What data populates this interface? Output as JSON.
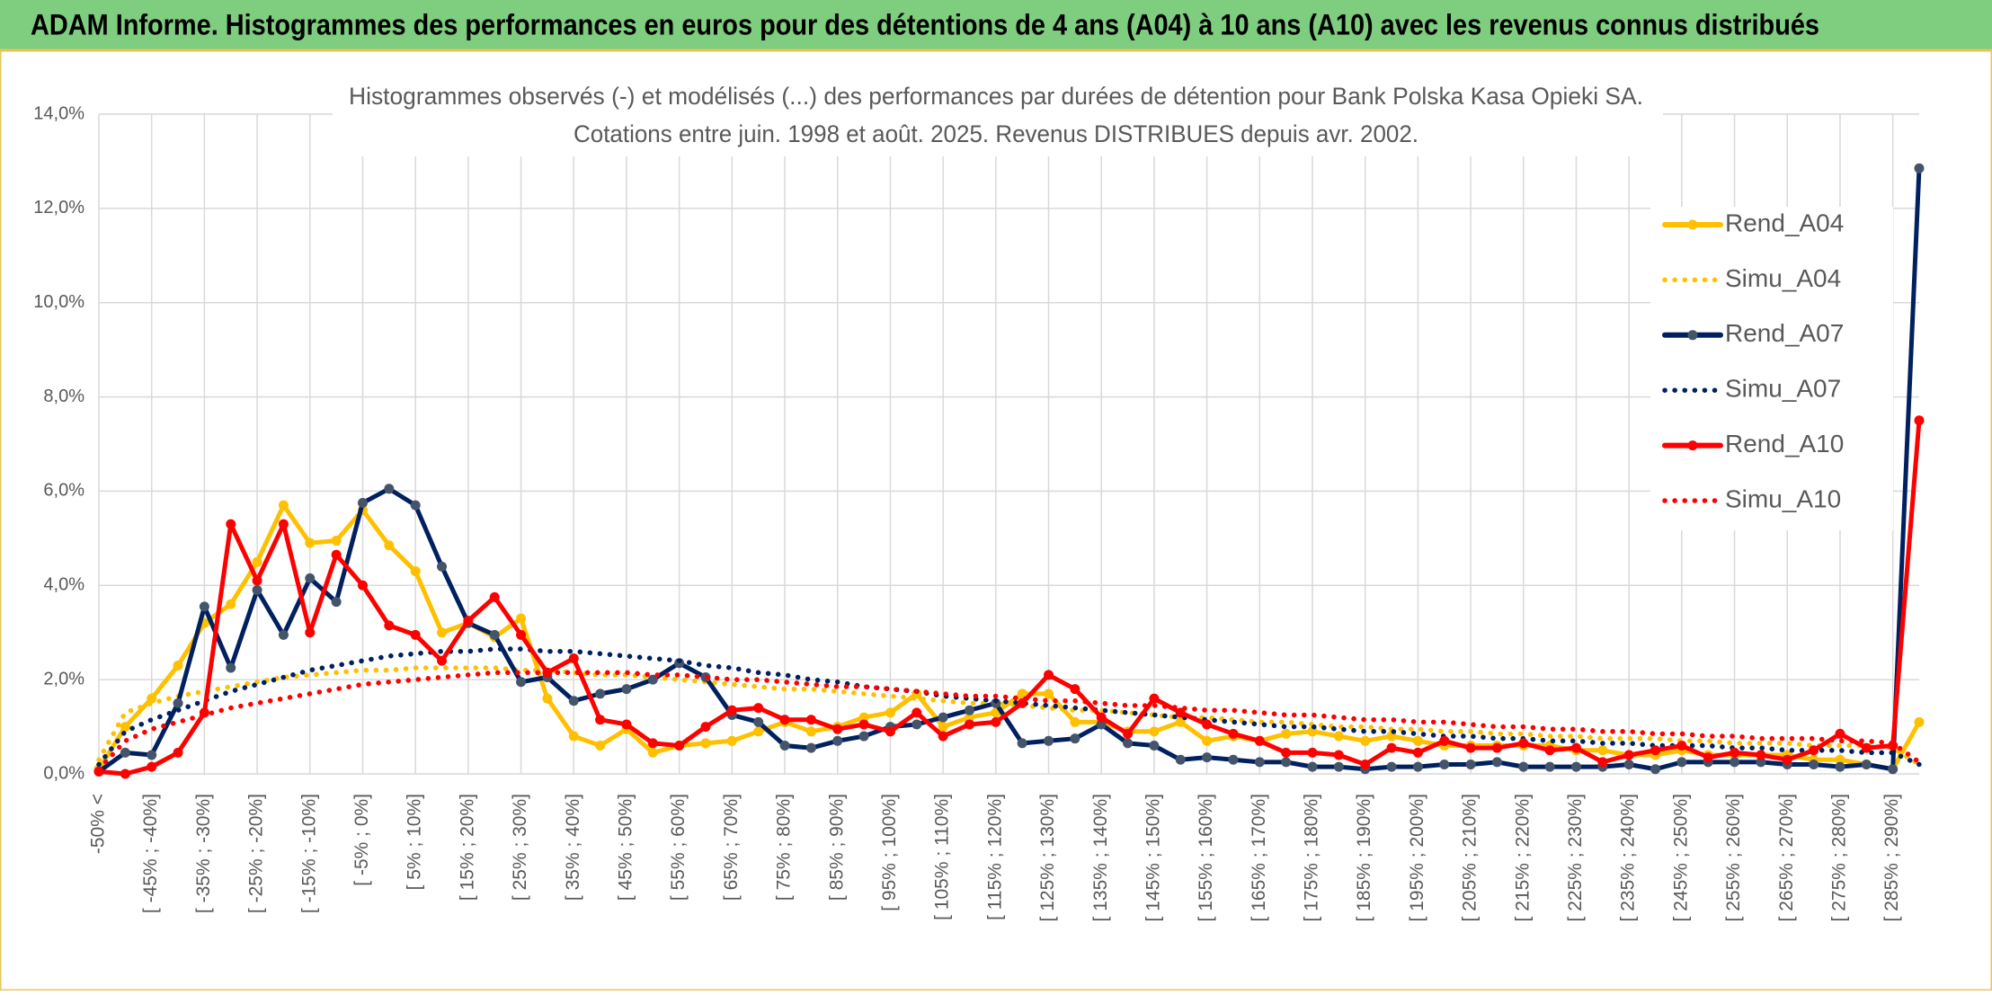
{
  "header": {
    "title": "ADAM Informe. Histogrammes des performances en euros pour des détentions de 4 ans (A04) à 10 ans (A10) avec les revenus connus distribués"
  },
  "chart_data": {
    "type": "line",
    "title": "Histogrammes observés (-) et modélisés (...) des performances par durées de détention pour Bank Polska Kasa Opieki SA.",
    "subtitle": "Cotations entre juin. 1998 et août. 2025. Revenus DISTRIBUES depuis avr. 2002.",
    "categories": [
      "-50% <",
      null,
      "[ -45% ; -40%]",
      null,
      "[ -35% ; -30%]",
      null,
      "[ -25% ; -20%]",
      null,
      "[ -15% ; -10%]",
      null,
      "[ -5% ; 0%]",
      null,
      "[ 5% ; 10%]",
      null,
      "[ 15% ; 20%]",
      null,
      "[ 25% ; 30%]",
      null,
      "[ 35% ; 40%]",
      null,
      "[ 45% ; 50%]",
      null,
      "[ 55% ; 60%]",
      null,
      "[ 65% ; 70%]",
      null,
      "[ 75% ; 80%]",
      null,
      "[ 85% ; 90%]",
      null,
      "[ 95% ; 100%]",
      null,
      "[ 105% ; 110%]",
      null,
      "[ 115% ; 120%]",
      null,
      "[ 125% ; 130%]",
      null,
      "[ 135% ; 140%]",
      null,
      "[ 145% ; 150%]",
      null,
      "[ 155% ; 160%]",
      null,
      "[ 165% ; 170%]",
      null,
      "[ 175% ; 180%]",
      null,
      "[ 185% ; 190%]",
      null,
      "[ 195% ; 200%]",
      null,
      "[ 205% ; 210%]",
      null,
      "[ 215% ; 220%]",
      null,
      "[ 225% ; 230%]",
      null,
      "[ 235% ; 240%]",
      null,
      "[ 245% ; 250%]",
      null,
      "[ 255% ; 260%]",
      null,
      "[ 265% ; 270%]",
      null,
      "[ 275% ; 280%]",
      null,
      "[ 285% ; 290%]",
      null
    ],
    "series": [
      {
        "name": "Rend_A04",
        "color": "#ffc000",
        "style": "solid",
        "markers": true,
        "values": [
          0.1,
          1.0,
          1.6,
          2.3,
          3.2,
          3.6,
          4.5,
          5.7,
          4.9,
          4.95,
          5.6,
          4.85,
          4.3,
          3.0,
          3.2,
          2.9,
          3.3,
          1.6,
          0.8,
          0.6,
          0.95,
          0.45,
          0.6,
          0.65,
          0.7,
          0.9,
          1.1,
          0.9,
          1.0,
          1.2,
          1.3,
          1.7,
          1.0,
          1.2,
          1.3,
          1.7,
          1.7,
          1.1,
          1.1,
          0.9,
          0.9,
          1.1,
          0.7,
          0.8,
          0.7,
          0.85,
          0.9,
          0.8,
          0.7,
          0.8,
          0.7,
          0.6,
          0.6,
          0.6,
          0.6,
          0.6,
          0.5,
          0.5,
          0.4,
          0.4,
          0.5,
          0.4,
          0.4,
          0.4,
          0.4,
          0.3,
          0.3,
          0.2,
          0.1,
          1.1
        ]
      },
      {
        "name": "Simu_A04",
        "color": "#ffc000",
        "style": "dotted",
        "markers": false,
        "values": [
          0.3,
          1.3,
          1.5,
          1.65,
          1.75,
          1.85,
          1.95,
          2.05,
          2.1,
          2.15,
          2.2,
          2.2,
          2.25,
          2.25,
          2.25,
          2.25,
          2.2,
          2.2,
          2.15,
          2.1,
          2.1,
          2.05,
          2.0,
          1.95,
          1.9,
          1.85,
          1.8,
          1.8,
          1.75,
          1.7,
          1.65,
          1.6,
          1.55,
          1.5,
          1.5,
          1.45,
          1.4,
          1.35,
          1.35,
          1.3,
          1.25,
          1.2,
          1.2,
          1.15,
          1.1,
          1.1,
          1.05,
          1.0,
          1.0,
          0.95,
          0.95,
          0.9,
          0.9,
          0.85,
          0.85,
          0.8,
          0.8,
          0.75,
          0.75,
          0.75,
          0.7,
          0.7,
          0.65,
          0.65,
          0.65,
          0.6,
          0.6,
          0.6,
          0.55,
          0.2
        ]
      },
      {
        "name": "Rend_A07",
        "color": "#002060",
        "marker_color": "#44546a",
        "style": "solid",
        "markers": true,
        "values": [
          0.05,
          0.45,
          0.4,
          1.5,
          3.55,
          2.25,
          3.9,
          2.95,
          4.15,
          3.65,
          5.75,
          6.05,
          5.7,
          4.4,
          3.2,
          2.95,
          1.95,
          2.05,
          1.55,
          1.7,
          1.8,
          2.0,
          2.35,
          2.05,
          1.25,
          1.1,
          0.6,
          0.55,
          0.7,
          0.8,
          1.0,
          1.05,
          1.2,
          1.35,
          1.5,
          0.65,
          0.7,
          0.75,
          1.05,
          0.65,
          0.6,
          0.3,
          0.35,
          0.3,
          0.25,
          0.25,
          0.15,
          0.15,
          0.1,
          0.15,
          0.15,
          0.2,
          0.2,
          0.25,
          0.15,
          0.15,
          0.15,
          0.15,
          0.2,
          0.1,
          0.25,
          0.25,
          0.25,
          0.25,
          0.2,
          0.2,
          0.15,
          0.2,
          0.1,
          12.85
        ]
      },
      {
        "name": "Simu_A07",
        "color": "#002060",
        "style": "dotted",
        "markers": false,
        "values": [
          0.2,
          0.9,
          1.15,
          1.35,
          1.55,
          1.75,
          1.9,
          2.05,
          2.2,
          2.3,
          2.4,
          2.5,
          2.55,
          2.6,
          2.6,
          2.65,
          2.65,
          2.6,
          2.6,
          2.55,
          2.5,
          2.45,
          2.4,
          2.3,
          2.25,
          2.15,
          2.1,
          2.0,
          1.95,
          1.85,
          1.8,
          1.75,
          1.65,
          1.6,
          1.55,
          1.5,
          1.45,
          1.4,
          1.35,
          1.3,
          1.25,
          1.2,
          1.15,
          1.1,
          1.05,
          1.0,
          1.0,
          0.95,
          0.9,
          0.9,
          0.85,
          0.8,
          0.8,
          0.75,
          0.75,
          0.7,
          0.7,
          0.65,
          0.65,
          0.6,
          0.6,
          0.6,
          0.55,
          0.55,
          0.5,
          0.5,
          0.5,
          0.45,
          0.45,
          0.2
        ]
      },
      {
        "name": "Rend_A10",
        "color": "#ff0000",
        "style": "solid",
        "markers": true,
        "values": [
          0.05,
          0.0,
          0.15,
          0.45,
          1.3,
          5.3,
          4.1,
          5.3,
          3.0,
          4.65,
          4.0,
          3.15,
          2.95,
          2.4,
          3.25,
          3.75,
          2.95,
          2.15,
          2.45,
          1.15,
          1.05,
          0.65,
          0.6,
          1.0,
          1.35,
          1.4,
          1.15,
          1.15,
          0.95,
          1.05,
          0.9,
          1.3,
          0.8,
          1.05,
          1.1,
          1.5,
          2.1,
          1.8,
          1.2,
          0.85,
          1.6,
          1.3,
          1.05,
          0.85,
          0.7,
          0.45,
          0.45,
          0.4,
          0.2,
          0.55,
          0.45,
          0.7,
          0.55,
          0.55,
          0.65,
          0.5,
          0.55,
          0.25,
          0.4,
          0.5,
          0.6,
          0.35,
          0.45,
          0.4,
          0.3,
          0.5,
          0.85,
          0.55,
          0.6,
          7.5
        ]
      },
      {
        "name": "Simu_A10",
        "color": "#ff0000",
        "style": "dotted",
        "markers": false,
        "values": [
          0.1,
          0.7,
          0.95,
          1.1,
          1.25,
          1.4,
          1.5,
          1.6,
          1.7,
          1.8,
          1.9,
          1.95,
          2.0,
          2.05,
          2.1,
          2.15,
          2.15,
          2.15,
          2.15,
          2.15,
          2.15,
          2.1,
          2.1,
          2.05,
          2.0,
          2.0,
          1.95,
          1.9,
          1.85,
          1.85,
          1.8,
          1.75,
          1.7,
          1.65,
          1.65,
          1.6,
          1.55,
          1.55,
          1.5,
          1.45,
          1.45,
          1.4,
          1.35,
          1.35,
          1.3,
          1.25,
          1.25,
          1.2,
          1.15,
          1.15,
          1.1,
          1.1,
          1.05,
          1.0,
          1.0,
          0.95,
          0.95,
          0.9,
          0.9,
          0.85,
          0.85,
          0.8,
          0.8,
          0.75,
          0.75,
          0.75,
          0.7,
          0.7,
          0.65,
          0.25
        ]
      }
    ],
    "ylim": [
      0,
      14
    ],
    "yticks": [
      {
        "value": 0,
        "label": "0,0%"
      },
      {
        "value": 2,
        "label": "2,0%"
      },
      {
        "value": 4,
        "label": "4,0%"
      },
      {
        "value": 6,
        "label": "6,0%"
      },
      {
        "value": 8,
        "label": "8,0%"
      },
      {
        "value": 10,
        "label": "10,0%"
      },
      {
        "value": 12,
        "label": "12,0%"
      },
      {
        "value": 14,
        "label": "14,0%"
      }
    ],
    "grid": true,
    "legend": "top-right"
  }
}
